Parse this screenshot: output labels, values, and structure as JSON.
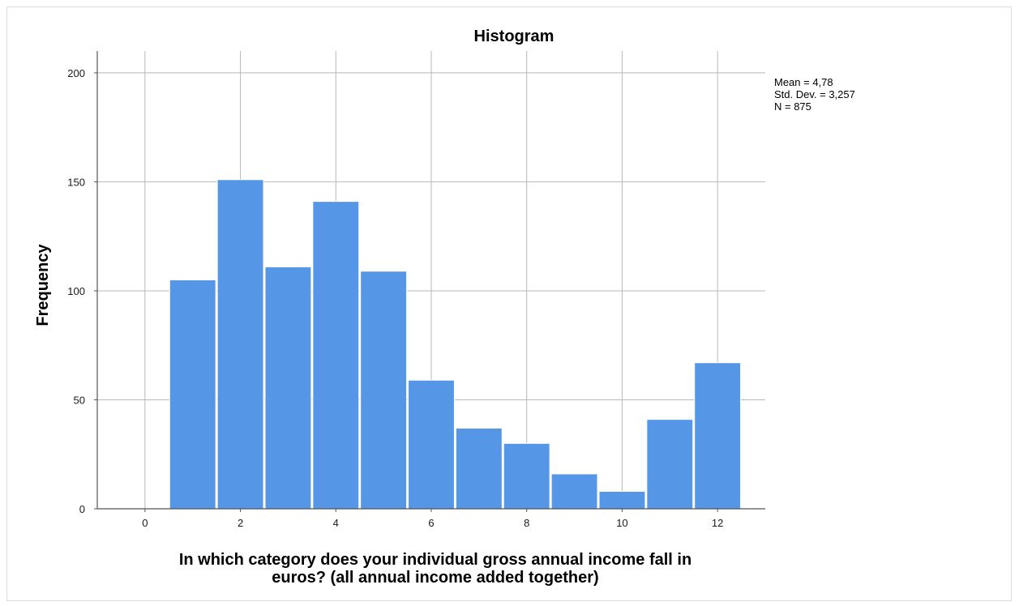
{
  "chart_data": {
    "type": "bar",
    "title": "Histogram",
    "xlabel_lines": [
      "In which category does your individual gross annual income fall in",
      "euros? (all annual income added together)"
    ],
    "ylabel": "Frequency",
    "bins": [
      {
        "x": 1,
        "value": 105
      },
      {
        "x": 2,
        "value": 151
      },
      {
        "x": 3,
        "value": 111
      },
      {
        "x": 4,
        "value": 141
      },
      {
        "x": 5,
        "value": 109
      },
      {
        "x": 6,
        "value": 59
      },
      {
        "x": 7,
        "value": 37
      },
      {
        "x": 8,
        "value": 30
      },
      {
        "x": 9,
        "value": 16
      },
      {
        "x": 10,
        "value": 8
      },
      {
        "x": 11,
        "value": 41
      },
      {
        "x": 12,
        "value": 67
      }
    ],
    "xlim": [
      -1,
      13
    ],
    "ylim": [
      0,
      210
    ],
    "x_ticks": [
      0,
      2,
      4,
      6,
      8,
      10,
      12
    ],
    "y_ticks": [
      0,
      50,
      100,
      150,
      200
    ],
    "grid": true,
    "bar_color": "#5596e6",
    "grid_color": "#b8b8b8",
    "stats": {
      "mean": "Mean = 4,78",
      "std_dev": "Std. Dev. = 3,257",
      "n": "N = 875"
    }
  }
}
